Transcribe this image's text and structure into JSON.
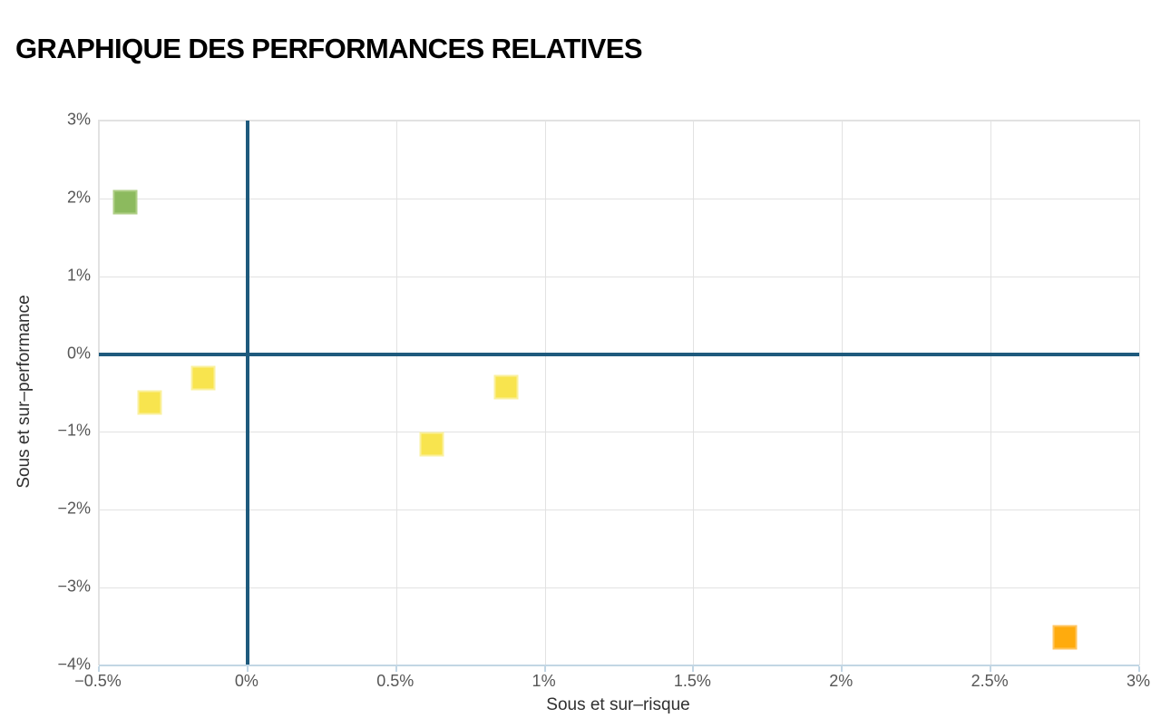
{
  "title": "GRAPHIQUE DES PERFORMANCES RELATIVES",
  "colors": {
    "zero_line": "#1e5a7d",
    "grid": "#e2e2e2",
    "axis_line": "#c2d6e4",
    "tick_label": "#565656",
    "axis_title": "#303030",
    "background": "#ffffff",
    "title_text": "#000000"
  },
  "chart_data": {
    "type": "scatter",
    "title": "GRAPHIQUE DES PERFORMANCES RELATIVES",
    "xlabel": "Sous et sur–risque",
    "ylabel": "Sous et sur–performance",
    "xlim": [
      -0.5,
      3
    ],
    "ylim": [
      -4,
      3
    ],
    "x_unit": "%",
    "y_unit": "%",
    "grid": true,
    "zero_lines": true,
    "legend": "none",
    "marker": "square",
    "x_ticks": [
      {
        "value": -0.5,
        "label": "−0.5%"
      },
      {
        "value": 0,
        "label": "0%"
      },
      {
        "value": 0.5,
        "label": "0.5%"
      },
      {
        "value": 1,
        "label": "1%"
      },
      {
        "value": 1.5,
        "label": "1.5%"
      },
      {
        "value": 2,
        "label": "2%"
      },
      {
        "value": 2.5,
        "label": "2.5%"
      },
      {
        "value": 3,
        "label": "3%"
      }
    ],
    "y_ticks": [
      {
        "value": 3,
        "label": "3%"
      },
      {
        "value": 2,
        "label": "2%"
      },
      {
        "value": 1,
        "label": "1%"
      },
      {
        "value": 0,
        "label": "0%"
      },
      {
        "value": -1,
        "label": "−1%"
      },
      {
        "value": -2,
        "label": "−2%"
      },
      {
        "value": -3,
        "label": "−3%"
      },
      {
        "value": -4,
        "label": "−4%"
      }
    ],
    "points": [
      {
        "x": -0.41,
        "y": 1.95,
        "color_name": "green",
        "fill": "#8cba5e",
        "border": "#aece85"
      },
      {
        "x": -0.33,
        "y": -0.62,
        "color_name": "yellow",
        "fill": "#f8e44e",
        "border": "#faf09e"
      },
      {
        "x": -0.15,
        "y": -0.31,
        "color_name": "yellow",
        "fill": "#f8e44e",
        "border": "#faf09e"
      },
      {
        "x": 0.62,
        "y": -1.16,
        "color_name": "yellow",
        "fill": "#f8e44e",
        "border": "#faf09e"
      },
      {
        "x": 0.87,
        "y": -0.42,
        "color_name": "yellow",
        "fill": "#f8e44e",
        "border": "#faf09e"
      },
      {
        "x": 2.75,
        "y": -3.64,
        "color_name": "orange",
        "fill": "#ffab0d",
        "border": "#ffc45f"
      }
    ]
  }
}
